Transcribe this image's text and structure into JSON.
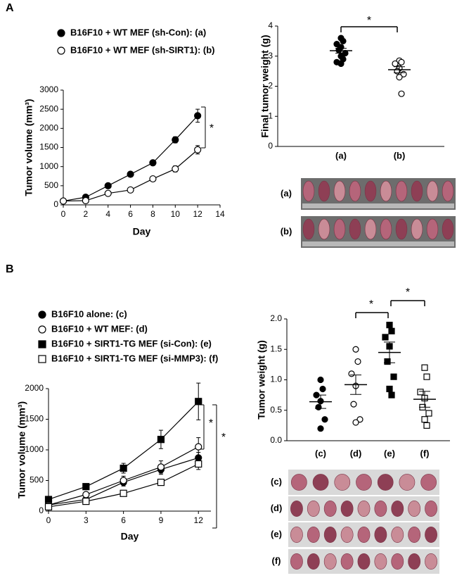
{
  "panel_labels": [
    "A",
    "B"
  ],
  "photos": [
    {
      "labels": [
        "(a)",
        "(b)"
      ]
    },
    {
      "labels": [
        "(c)",
        "(d)",
        "(e)",
        "(f)"
      ]
    }
  ],
  "chart_data": [
    {
      "type": "line",
      "xlabel": "Day",
      "ylabel": "Tumor volume (mm³)",
      "x": [
        0,
        2,
        4,
        6,
        8,
        10,
        12
      ],
      "xlim": [
        0,
        14
      ],
      "xticks": [
        0,
        2,
        4,
        6,
        8,
        10,
        12,
        14
      ],
      "ylim": [
        0,
        3000
      ],
      "yticks": [
        0,
        500,
        1000,
        1500,
        2000,
        2500,
        3000
      ],
      "series": [
        {
          "name": "B16F10 + WT MEF (sh-Con): (a)",
          "color": "#000000",
          "marker": "circle",
          "filled": true,
          "values": [
            100,
            200,
            500,
            800,
            1100,
            1700,
            2330
          ],
          "errors": [
            20,
            30,
            40,
            50,
            60,
            80,
            170
          ]
        },
        {
          "name": "B16F10 + WT MEF (sh-SIRT1): (b)",
          "color": "#000000",
          "marker": "circle",
          "filled": false,
          "values": [
            100,
            110,
            300,
            390,
            680,
            940,
            1440
          ],
          "errors": [
            20,
            20,
            30,
            40,
            50,
            80,
            110
          ]
        }
      ],
      "annotations": [
        "*"
      ]
    },
    {
      "type": "dot",
      "ylabel": "Final tumor weight (g)",
      "categories": [
        "(a)",
        "(b)"
      ],
      "points": [
        [
          3.6,
          3.5,
          3.4,
          3.3,
          3.2,
          3.1,
          3.0,
          2.9,
          2.8,
          2.75
        ],
        [
          2.85,
          2.8,
          2.75,
          2.6,
          2.5,
          2.4,
          2.3,
          1.75
        ]
      ],
      "means": [
        3.18,
        2.55
      ],
      "sems": [
        0.08,
        0.1
      ],
      "markers": [
        "circle",
        "circle"
      ],
      "filled": [
        true,
        false
      ],
      "ylim": [
        0,
        4
      ],
      "yticks": [
        0,
        1,
        2,
        3,
        4
      ],
      "annotations": [
        "*"
      ]
    },
    {
      "type": "line",
      "xlabel": "Day",
      "ylabel": "Tumor volume (mm³)",
      "x": [
        0,
        3,
        6,
        9,
        12
      ],
      "xlim": [
        0,
        13
      ],
      "xticks": [
        0,
        3,
        6,
        9,
        12
      ],
      "ylim": [
        0,
        2000
      ],
      "yticks": [
        0,
        500,
        1000,
        1500,
        2000
      ],
      "series": [
        {
          "name": "B16F10 alone: (c)",
          "color": "#000000",
          "marker": "circle",
          "filled": true,
          "values": [
            100,
            190,
            470,
            680,
            870
          ],
          "errors": [
            20,
            30,
            60,
            80,
            90
          ]
        },
        {
          "name": "B16F10 + WT MEF: (d)",
          "color": "#000000",
          "marker": "circle",
          "filled": false,
          "values": [
            100,
            270,
            500,
            720,
            1050
          ],
          "errors": [
            20,
            40,
            70,
            100,
            150
          ]
        },
        {
          "name": "B16F10 + SIRT1-TG MEF (si-Con): (e)",
          "color": "#000000",
          "marker": "square",
          "filled": true,
          "values": [
            190,
            400,
            700,
            1170,
            1790
          ],
          "errors": [
            20,
            40,
            80,
            150,
            300
          ]
        },
        {
          "name": "B16F10 + SIRT1-TG MEF (si-MMP3): (f)",
          "color": "#000000",
          "marker": "square",
          "filled": false,
          "values": [
            70,
            160,
            290,
            470,
            770
          ],
          "errors": [
            10,
            20,
            40,
            50,
            90
          ]
        }
      ],
      "annotations": [
        "*",
        "*"
      ]
    },
    {
      "type": "dot",
      "ylabel": "Tumor weight (g)",
      "categories": [
        "(c)",
        "(d)",
        "(e)",
        "(f)"
      ],
      "points": [
        [
          1.0,
          0.85,
          0.75,
          0.65,
          0.55,
          0.35,
          0.2
        ],
        [
          1.5,
          1.3,
          1.1,
          0.9,
          0.6,
          0.35,
          0.3
        ],
        [
          1.9,
          1.8,
          1.7,
          1.55,
          1.3,
          1.05,
          0.85,
          0.75
        ],
        [
          1.2,
          1.05,
          0.8,
          0.7,
          0.55,
          0.45,
          0.35,
          0.25
        ]
      ],
      "means": [
        0.64,
        0.92,
        1.45,
        0.68
      ],
      "sems": [
        0.11,
        0.16,
        0.17,
        0.13
      ],
      "markers": [
        "circle",
        "circle",
        "square",
        "square"
      ],
      "filled": [
        true,
        false,
        true,
        false
      ],
      "ylim": [
        0,
        2
      ],
      "yticks": [
        {
          "value": 0,
          "label": "0.0"
        },
        0.5,
        {
          "value": 1,
          "label": "1.0"
        },
        1.5,
        {
          "value": 2,
          "label": "2.0"
        }
      ],
      "annotations": [
        "*",
        "*"
      ]
    }
  ]
}
